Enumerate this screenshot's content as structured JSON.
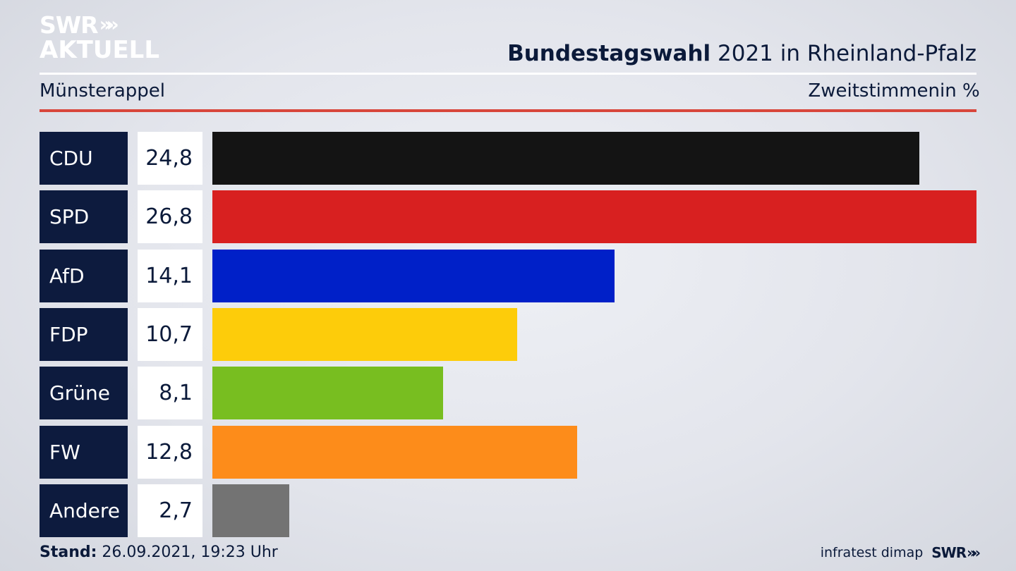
{
  "logo": {
    "line1": "SWR",
    "chevrons": "»»",
    "line2": "AKTUELL"
  },
  "header": {
    "title_bold": "Bundestagswahl",
    "title_rest": " 2021 in Rheinland-Pfalz"
  },
  "subheader": {
    "location": "Münsterappel",
    "metric": "Zweitstimmen",
    "unit": "in %"
  },
  "chart_data": {
    "type": "bar",
    "orientation": "horizontal",
    "categories": [
      "CDU",
      "SPD",
      "AfD",
      "FDP",
      "Grüne",
      "FW",
      "Andere"
    ],
    "values": [
      24.8,
      26.8,
      14.1,
      10.7,
      8.1,
      12.8,
      2.7
    ],
    "value_labels": [
      "24,8",
      "26,8",
      "14,1",
      "10,7",
      "8,1",
      "12,8",
      "2,7"
    ],
    "colors": [
      "#141414",
      "#d82020",
      "#0020c8",
      "#fdcc0a",
      "#78be20",
      "#fd8c1a",
      "#737373"
    ],
    "xlim": [
      0,
      26.8
    ],
    "grid": false
  },
  "footer": {
    "stand_label": "Stand:",
    "stand_value": " 26.09.2021, 19:23 Uhr",
    "source": "infratest dimap",
    "brand": "SWR",
    "brand_chevrons": "»»"
  }
}
